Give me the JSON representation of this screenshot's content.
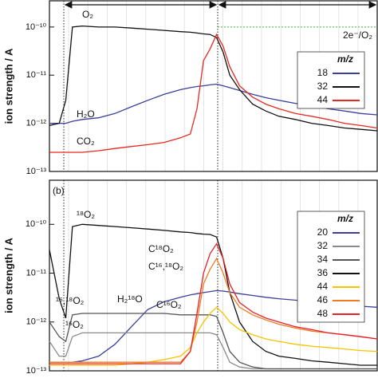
{
  "chart_data": [
    {
      "type": "line",
      "y_label": "ion strength / A",
      "log_y": true,
      "x": [
        0,
        3,
        5,
        7,
        10,
        15,
        20,
        25,
        30,
        35,
        40,
        43,
        45,
        47,
        49,
        51,
        53,
        55,
        58,
        62,
        66,
        70,
        75,
        80,
        85,
        90,
        95,
        100
      ],
      "xlim": [
        0,
        100
      ],
      "ylim": [
        1e-13,
        3.5e-10
      ],
      "yticks": [
        {
          "value": 1e-13,
          "label": "10⁻¹³"
        },
        {
          "value": 1e-12,
          "label": "10⁻¹²"
        },
        {
          "value": 1e-11,
          "label": "10⁻¹¹"
        },
        {
          "value": 1e-10,
          "label": "10⁻¹⁰"
        }
      ],
      "legend_title": "m/z",
      "legend": "upper right",
      "series": [
        {
          "name": "18",
          "color": "#3a3f9a",
          "values": [
            1e-12,
            1e-12,
            1e-12,
            1.1e-12,
            1.2e-12,
            1.3e-12,
            1.6e-12,
            2.2e-12,
            3e-12,
            4e-12,
            5e-12,
            5.5e-12,
            5.8e-12,
            6e-12,
            6.3e-12,
            6.5e-12,
            6e-12,
            5.5e-12,
            4.8e-12,
            4e-12,
            3.4e-12,
            3e-12,
            2.6e-12,
            2.3e-12,
            2e-12,
            1.8e-12,
            1.6e-12,
            1.5e-12
          ]
        },
        {
          "name": "32",
          "color": "#111111",
          "values": [
            9e-13,
            1e-12,
            3e-12,
            1e-10,
            1.05e-10,
            1e-10,
            1e-10,
            9.5e-11,
            9e-11,
            8.5e-11,
            8e-11,
            7.8e-11,
            7.5e-11,
            7.2e-11,
            7e-11,
            6e-11,
            3e-11,
            1e-11,
            5e-12,
            2.5e-12,
            1.8e-12,
            1.4e-12,
            1.2e-12,
            1e-12,
            9e-13,
            8e-13,
            7.5e-13,
            7e-13
          ]
        },
        {
          "name": "44",
          "color": "#e52a20",
          "values": [
            2.5e-13,
            2.5e-13,
            2.5e-13,
            2.5e-13,
            2.5e-13,
            2.7e-13,
            3e-13,
            3.3e-13,
            3.6e-13,
            4e-13,
            5e-13,
            6e-13,
            2e-12,
            2e-11,
            3.5e-11,
            7e-11,
            4e-11,
            1.5e-11,
            6e-12,
            3.5e-12,
            2.5e-12,
            2e-12,
            1.6e-12,
            1.4e-12,
            1.2e-12,
            1e-12,
            9e-13,
            8e-13
          ]
        }
      ],
      "annotations": [
        {
          "text": "O₂",
          "color": "#111111"
        },
        {
          "text": "H₂O",
          "color": "#3a3f9a"
        },
        {
          "text": "CO₂",
          "color": "#e52a20"
        },
        {
          "text": "2e⁻/O₂",
          "color": "#3cb43c"
        }
      ]
    },
    {
      "type": "line",
      "y_label": "ion strength / A",
      "log_y": true,
      "panel_label": "(b)",
      "x": [
        0,
        3,
        5,
        7,
        10,
        15,
        20,
        25,
        30,
        35,
        40,
        43,
        45,
        47,
        49,
        51,
        53,
        55,
        58,
        62,
        66,
        70,
        75,
        80,
        85,
        90,
        95,
        100
      ],
      "xlim": [
        0,
        100
      ],
      "ylim": [
        1e-13,
        8e-10
      ],
      "yticks": [
        {
          "value": 1e-13,
          "label": "10⁻¹³"
        },
        {
          "value": 1e-12,
          "label": "10⁻¹²"
        },
        {
          "value": 1e-11,
          "label": "10⁻¹¹"
        },
        {
          "value": 1e-10,
          "label": "10⁻¹⁰"
        }
      ],
      "legend_title": "m/z",
      "legend": "upper right",
      "series": [
        {
          "name": "20",
          "color": "#3b3f99",
          "values": [
            1.5e-13,
            1.5e-13,
            1.5e-13,
            1.5e-13,
            1.6e-13,
            2e-13,
            3.5e-13,
            8e-13,
            1.8e-12,
            2.6e-12,
            3.2e-12,
            3.6e-12,
            3.8e-12,
            4e-12,
            4.2e-12,
            4.4e-12,
            4.3e-12,
            4.1e-12,
            3.8e-12,
            3.5e-12,
            3.2e-12,
            3e-12,
            2.8e-12,
            2.6e-12,
            2.4e-12,
            2.2e-12,
            2.1e-12,
            2e-12
          ]
        },
        {
          "name": "32",
          "color": "#8a8a8a",
          "values": [
            4e-13,
            2e-13,
            2e-13,
            5e-13,
            6e-13,
            6e-13,
            6e-13,
            6e-13,
            6e-13,
            6e-13,
            6e-13,
            6e-13,
            6e-13,
            6e-13,
            6e-13,
            5.5e-13,
            3e-13,
            1.5e-13,
            1.2e-13,
            1.1e-13,
            1.1e-13,
            1.1e-13,
            1.1e-13,
            1.1e-13,
            1.1e-13,
            1.1e-13,
            1.1e-13,
            1.1e-13
          ]
        },
        {
          "name": "34",
          "color": "#555555",
          "values": [
            1e-12,
            5e-13,
            4e-13,
            1.4e-12,
            1.5e-12,
            1.5e-12,
            1.5e-12,
            1.5e-12,
            1.5e-12,
            1.5e-12,
            1.4e-12,
            1.4e-12,
            1.4e-12,
            1.4e-12,
            1.4e-12,
            1.3e-12,
            6e-13,
            2.5e-13,
            1.5e-13,
            1.2e-13,
            1.1e-13,
            1.1e-13,
            1.1e-13,
            1.1e-13,
            1.1e-13,
            1.1e-13,
            1.1e-13,
            1.1e-13
          ]
        },
        {
          "name": "36",
          "color": "#111111",
          "values": [
            3e-11,
            3e-12,
            1.2e-12,
            9e-11,
            1e-10,
            9.5e-11,
            9e-11,
            8.5e-11,
            8e-11,
            7.5e-11,
            7e-11,
            6.8e-11,
            6.5e-11,
            6.3e-11,
            6.2e-11,
            5.5e-11,
            2e-11,
            4e-12,
            1e-12,
            4e-13,
            2.5e-13,
            2e-13,
            1.8e-13,
            1.6e-13,
            1.5e-13,
            1.4e-13,
            1.3e-13,
            1.3e-13
          ]
        },
        {
          "name": "44",
          "color": "#f5c400",
          "values": [
            1.3e-13,
            1.3e-13,
            1.3e-13,
            1.3e-13,
            1.3e-13,
            1.3e-13,
            1.3e-13,
            1.4e-13,
            1.5e-13,
            1.7e-13,
            2e-13,
            3e-13,
            6e-13,
            1e-12,
            1.5e-12,
            2e-12,
            1.5e-12,
            1e-12,
            7e-13,
            5.5e-13,
            4.5e-13,
            4e-13,
            3.5e-13,
            3.2e-13,
            3e-13,
            2.8e-13,
            2.6e-13,
            2.5e-13
          ]
        },
        {
          "name": "46",
          "color": "#f07a20",
          "values": [
            1.5e-13,
            1.5e-13,
            1.5e-13,
            1.5e-13,
            1.5e-13,
            1.5e-13,
            1.5e-13,
            1.5e-13,
            1.5e-13,
            1.5e-13,
            1.5e-13,
            2.5e-13,
            1e-12,
            6e-12,
            1.2e-11,
            2e-11,
            1e-11,
            4e-12,
            2e-12,
            1.4e-12,
            1.1e-12,
            9e-13,
            7.5e-13,
            6.5e-13,
            6e-13,
            5.5e-13,
            5e-13,
            4.5e-13
          ]
        },
        {
          "name": "48",
          "color": "#e8202a",
          "values": [
            1.4e-13,
            1.4e-13,
            1.4e-13,
            1.4e-13,
            1.4e-13,
            1.4e-13,
            1.4e-13,
            1.4e-13,
            1.4e-13,
            1.4e-13,
            1.4e-13,
            2.5e-13,
            1.5e-12,
            1e-11,
            2.5e-11,
            4e-11,
            2e-11,
            6e-12,
            2.5e-12,
            1.6e-12,
            1.2e-12,
            1e-12,
            8e-13,
            7e-13,
            6e-13,
            5.5e-13,
            5e-13,
            4.5e-13
          ]
        }
      ],
      "annotations": [
        {
          "text": "¹⁸O₂",
          "color": "#111111"
        },
        {
          "text": "C¹⁸O₂",
          "color": "#e8202a"
        },
        {
          "text": "C¹⁶,¹⁸O₂",
          "color": "#f07a20"
        },
        {
          "text": "H₂¹⁸O",
          "color": "#3b3f99"
        },
        {
          "text": "C¹⁶O₂",
          "color": "#f5c400"
        },
        {
          "text": "¹⁶,¹⁸O₂",
          "color": "#333333"
        },
        {
          "text": "¹⁶O₂",
          "color": "#777777"
        }
      ]
    }
  ]
}
